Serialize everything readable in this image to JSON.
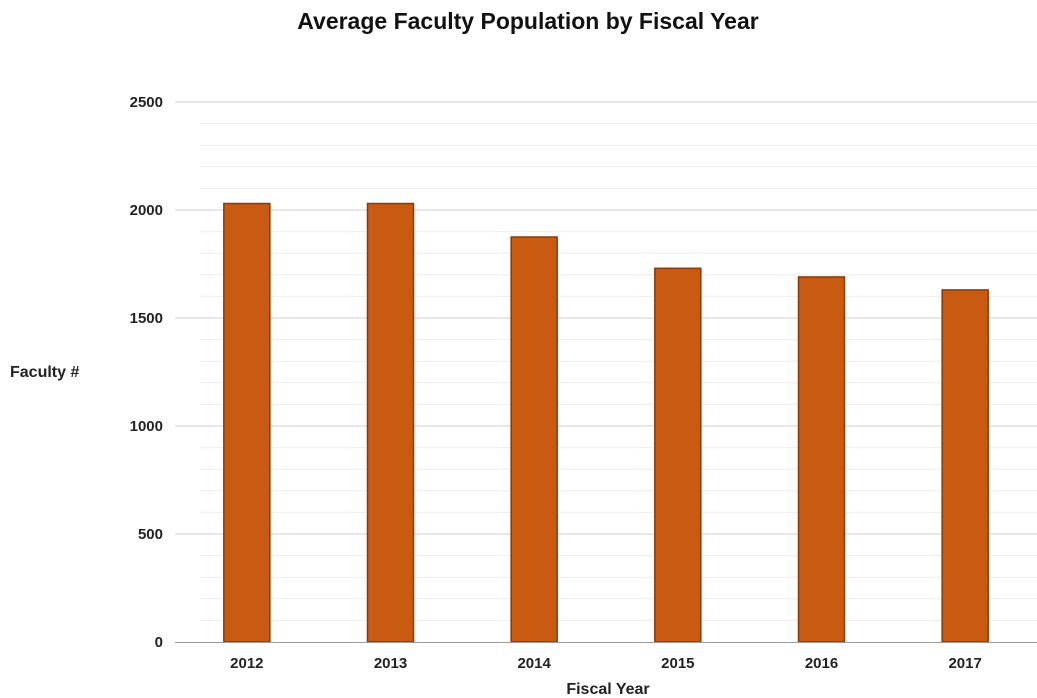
{
  "chart_data": {
    "type": "bar",
    "title": "Average Faculty Population by Fiscal Year",
    "xlabel": "Fiscal Year",
    "ylabel": "Faculty #",
    "categories": [
      "2012",
      "2013",
      "2014",
      "2015",
      "2016",
      "2017"
    ],
    "values": [
      2030,
      2030,
      1875,
      1730,
      1690,
      1630
    ],
    "ylim": [
      0,
      2500
    ],
    "yticks": [
      0,
      500,
      1000,
      1500,
      2000,
      2500
    ],
    "grid": true,
    "legend": "none",
    "bar_color": "#c85a12",
    "bar_edge_color": "#8a3a08"
  }
}
